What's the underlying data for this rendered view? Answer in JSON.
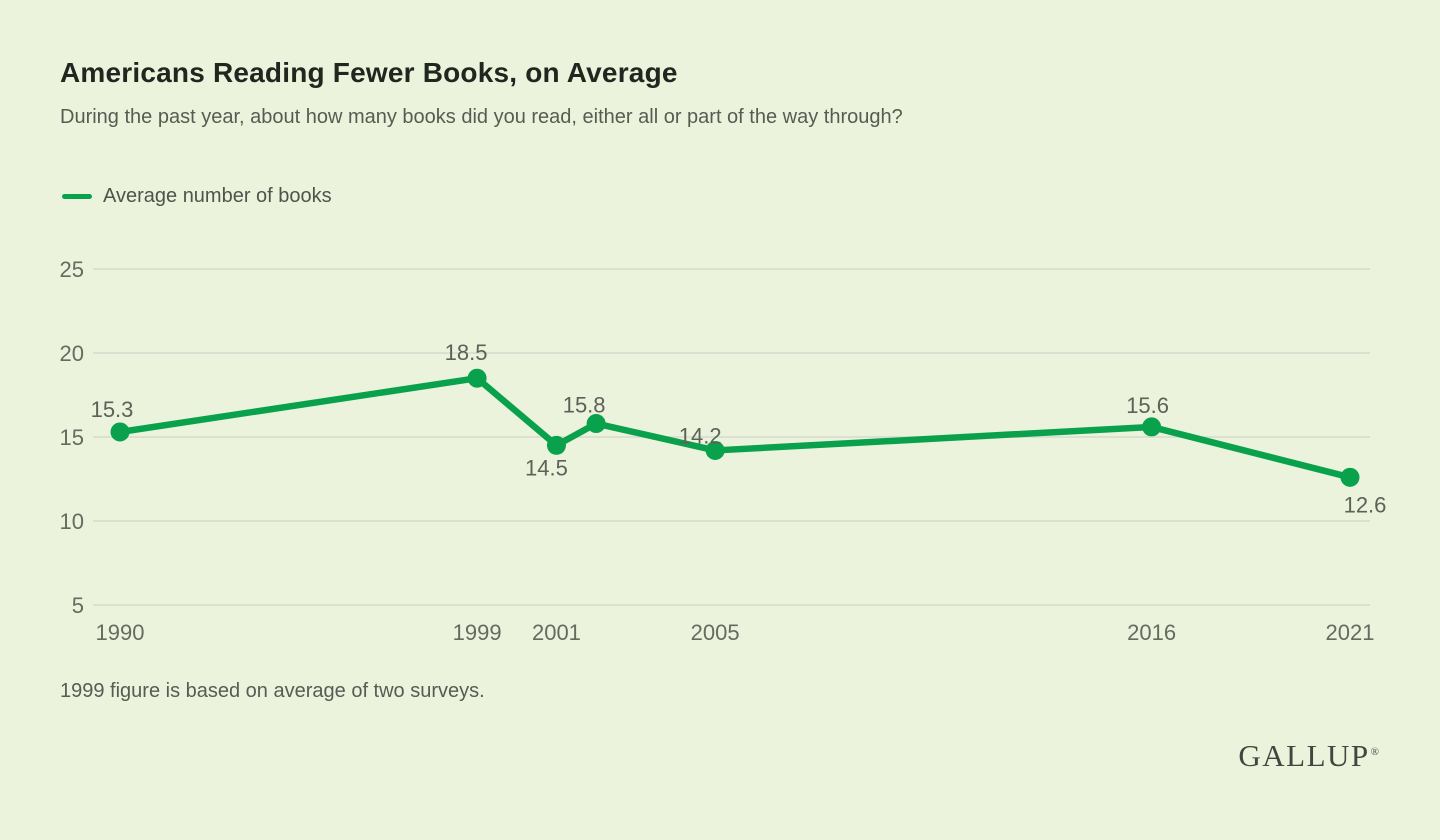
{
  "header": {
    "title": "Americans Reading Fewer Books, on Average",
    "subtitle": "During the past year, about how many books did you read, either all or part of the way through?"
  },
  "legend": {
    "label": "Average number of books"
  },
  "chart_data": {
    "type": "line",
    "title": "Americans Reading Fewer Books, on Average",
    "subtitle": "During the past year, about how many books did you read, either all or part of the way through?",
    "series_name": "Average number of books",
    "x": [
      1990,
      1999,
      2001,
      2002,
      2005,
      2016,
      2021
    ],
    "values": [
      15.3,
      18.5,
      14.5,
      15.8,
      14.2,
      15.6,
      12.6
    ],
    "point_labels": [
      "15.3",
      "18.5",
      "14.5",
      "15.8",
      "14.2",
      "15.6",
      "12.6"
    ],
    "x_tick_years": [
      1990,
      1999,
      2001,
      2005,
      2016,
      2021
    ],
    "x_tick_labels": [
      "1990",
      "1999",
      "2001",
      "2005",
      "2016",
      "2021"
    ],
    "y_ticks": [
      25,
      20,
      15,
      10,
      5
    ],
    "ylim": [
      5,
      25
    ],
    "xlim": [
      1990,
      2021
    ],
    "grid": true,
    "legend_position": "top-left",
    "line_color": "#0aa14d"
  },
  "footnote": "1999 figure is based on average of two surveys.",
  "logo": {
    "text": "GALLUP",
    "mark": "®"
  },
  "colors": {
    "background": "#ebf3dd",
    "accent_green": "#0aa14d",
    "gridline": "#dbe1d1",
    "title_text": "#21261f",
    "muted_text": "#575c52",
    "tick_text": "#666b60",
    "point_label_text": "#5d6157",
    "logo_text": "#42463f"
  }
}
